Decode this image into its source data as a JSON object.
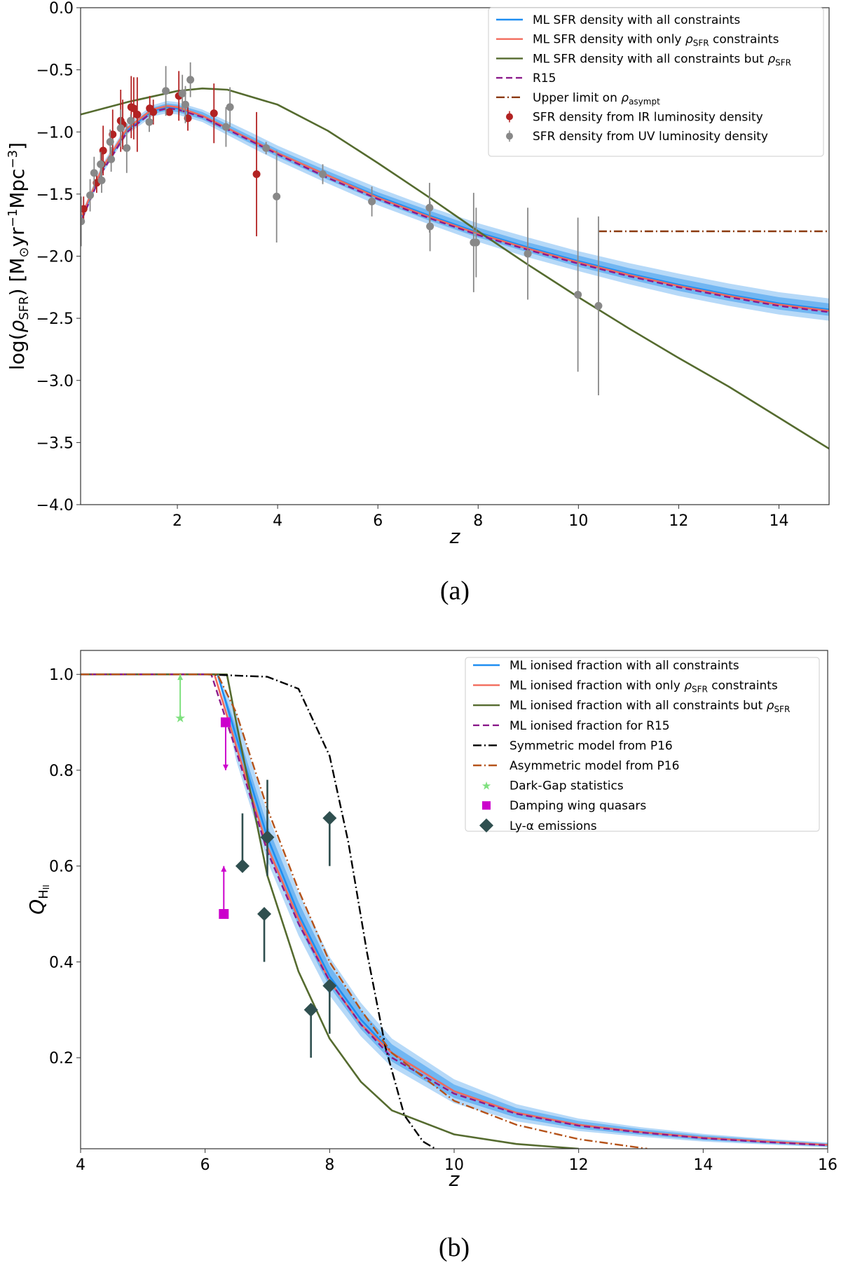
{
  "chart_data": [
    {
      "id": "a",
      "type": "line",
      "caption": "(a)",
      "xlabel": "z",
      "ylabel": "log(ρ_SFR) [M⊙yr⁻¹Mpc⁻³]",
      "ylabel_parts": {
        "pre": "log(",
        "rho": "ρ",
        "sub": "SFR",
        "mid": ") [M",
        "sun": "⊙",
        "yr": "yr",
        "e1": "−1",
        "mpc": "Mpc",
        "e2": "−3",
        "end": "]"
      },
      "xlim": [
        0.07,
        15
      ],
      "ylim": [
        -4.0,
        0.0
      ],
      "xticks": [
        2,
        4,
        6,
        8,
        10,
        12,
        14
      ],
      "xtick_labels": [
        "2",
        "4",
        "6",
        "8",
        "10",
        "12",
        "14"
      ],
      "yticks": [
        0.0,
        -0.5,
        -1.0,
        -1.5,
        -2.0,
        -2.5,
        -3.0,
        -3.5,
        -4.0
      ],
      "ytick_labels": [
        "0.0",
        "−0.5",
        "−1.0",
        "−1.5",
        "−2.0",
        "−2.5",
        "−3.0",
        "−3.5",
        "−4.0"
      ],
      "legend_position": "top-right",
      "legend": [
        {
          "label": "ML SFR density with all constraints",
          "style": "line",
          "color": "#1f8ef1"
        },
        {
          "label": "ML SFR density with only ρSFR constraints",
          "style": "line",
          "color": "#f26b5b"
        },
        {
          "label": "ML SFR density with all constraints but ρSFR",
          "style": "line",
          "color": "#556b2f"
        },
        {
          "label": "R15",
          "style": "dash",
          "color": "#8b1a8b"
        },
        {
          "label": "Upper limit on ρasympt",
          "style": "dashdot",
          "color": "#8b3a0f"
        },
        {
          "label": "SFR density from IR luminosity density",
          "style": "point",
          "color": "#b22222"
        },
        {
          "label": "SFR density from UV luminosity density",
          "style": "point",
          "color": "#888888"
        }
      ],
      "band": {
        "x": [
          0.1,
          0.5,
          1,
          1.5,
          1.8,
          2,
          2.5,
          3,
          3.5,
          4,
          5,
          6,
          7,
          8,
          9,
          10,
          11,
          12,
          13,
          14,
          15
        ],
        "inner": [
          0.02,
          0.02,
          0.02,
          0.025,
          0.03,
          0.03,
          0.03,
          0.03,
          0.03,
          0.03,
          0.035,
          0.035,
          0.04,
          0.04,
          0.04,
          0.045,
          0.045,
          0.05,
          0.05,
          0.05,
          0.05
        ],
        "outer": [
          0.04,
          0.04,
          0.04,
          0.045,
          0.05,
          0.05,
          0.05,
          0.055,
          0.06,
          0.06,
          0.065,
          0.07,
          0.07,
          0.075,
          0.08,
          0.08,
          0.085,
          0.09,
          0.09,
          0.09,
          0.09
        ]
      },
      "series": [
        {
          "name": "ML SFR density with all constraints",
          "x": [
            0.1,
            0.5,
            1,
            1.5,
            1.8,
            2,
            2.5,
            3,
            3.5,
            4,
            5,
            6,
            7,
            8,
            9,
            10,
            11,
            12,
            13,
            14,
            15
          ],
          "y": [
            -1.68,
            -1.3,
            -0.98,
            -0.83,
            -0.8,
            -0.81,
            -0.87,
            -0.97,
            -1.07,
            -1.17,
            -1.35,
            -1.52,
            -1.67,
            -1.81,
            -1.93,
            -2.04,
            -2.14,
            -2.23,
            -2.31,
            -2.38,
            -2.43
          ]
        },
        {
          "name": "ML SFR density with only ρSFR constraints",
          "x": [
            0.1,
            0.5,
            1,
            1.5,
            1.8,
            2,
            2.5,
            3,
            3.5,
            4,
            5,
            6,
            7,
            8,
            9,
            10,
            11,
            12,
            13,
            14,
            15
          ],
          "y": [
            -1.67,
            -1.29,
            -0.97,
            -0.82,
            -0.79,
            -0.8,
            -0.87,
            -0.97,
            -1.07,
            -1.17,
            -1.35,
            -1.53,
            -1.68,
            -1.82,
            -1.94,
            -2.05,
            -2.15,
            -2.24,
            -2.32,
            -2.39,
            -2.44
          ]
        },
        {
          "name": "ML SFR density with all constraints but ρSFR",
          "x": [
            0.07,
            1,
            2,
            2.5,
            3,
            4,
            5,
            6,
            7,
            8,
            9,
            10,
            11,
            12,
            13,
            14,
            15
          ],
          "y": [
            -0.86,
            -0.76,
            -0.67,
            -0.65,
            -0.66,
            -0.78,
            -0.99,
            -1.25,
            -1.52,
            -1.8,
            -2.07,
            -2.33,
            -2.58,
            -2.82,
            -3.05,
            -3.3,
            -3.55
          ]
        },
        {
          "name": "R15",
          "x": [
            0.1,
            0.5,
            1,
            1.5,
            1.8,
            2,
            2.5,
            3,
            3.5,
            4,
            5,
            6,
            7,
            8,
            9,
            10,
            11,
            12,
            13,
            14,
            15
          ],
          "y": [
            -1.7,
            -1.32,
            -1.0,
            -0.84,
            -0.81,
            -0.82,
            -0.88,
            -0.98,
            -1.08,
            -1.18,
            -1.37,
            -1.54,
            -1.69,
            -1.83,
            -1.95,
            -2.06,
            -2.16,
            -2.25,
            -2.33,
            -2.4,
            -2.45
          ]
        },
        {
          "name": "Upper limit on ρasympt",
          "x": [
            10.4,
            15
          ],
          "y": [
            -1.8,
            -1.8
          ]
        }
      ],
      "points": [
        {
          "name": "SFR density from IR luminosity density",
          "x": [
            0.13,
            0.39,
            0.49,
            0.52,
            0.71,
            0.87,
            0.91,
            1.08,
            1.13,
            1.2,
            1.45,
            1.52,
            1.84,
            2.03,
            2.21,
            2.73,
            3.58
          ],
          "y": [
            -1.62,
            -1.41,
            -1.26,
            -1.15,
            -1.02,
            -0.91,
            -0.94,
            -0.8,
            -0.81,
            -0.86,
            -0.81,
            -0.84,
            -0.84,
            -0.71,
            -0.89,
            -0.85,
            -1.34
          ],
          "err": [
            0.1,
            0.08,
            0.1,
            0.2,
            0.2,
            0.25,
            0.2,
            0.25,
            0.25,
            0.3,
            0.1,
            0.1,
            0.03,
            0.2,
            0.1,
            0.24,
            0.5
          ]
        },
        {
          "name": "SFR density from UV luminosity density",
          "x": [
            0.08,
            0.26,
            0.34,
            0.47,
            0.49,
            0.66,
            0.68,
            0.87,
            0.99,
            1.07,
            1.44,
            1.77,
            2.1,
            2.26,
            2.16,
            2.97,
            3.05,
            3.77,
            3.98,
            4.9,
            5.88,
            7.03,
            7.04,
            7.91,
            7.96,
            8.99,
            9.99,
            10.4
          ],
          "y": [
            -1.72,
            -1.51,
            -1.33,
            -1.26,
            -1.39,
            -1.08,
            -1.22,
            -0.97,
            -1.13,
            -0.91,
            -0.92,
            -0.67,
            -0.69,
            -0.58,
            -0.78,
            -0.96,
            -0.8,
            -1.13,
            -1.52,
            -1.34,
            -1.56,
            -1.61,
            -1.76,
            -1.89,
            -1.89,
            -1.98,
            -2.31,
            -2.4
          ],
          "err": [
            0.2,
            0.13,
            0.13,
            0.1,
            0.1,
            0.1,
            0.1,
            0.15,
            0.2,
            0.05,
            0.08,
            0.2,
            0.15,
            0.14,
            0.15,
            0.16,
            0.16,
            0.05,
            0.37,
            0.08,
            0.12,
            0.2,
            0.2,
            0.4,
            0.28,
            0.37,
            0.62,
            0.72
          ]
        }
      ]
    },
    {
      "id": "b",
      "type": "line",
      "caption": "(b)",
      "xlabel": "z",
      "ylabel": "Q_HII",
      "ylabel_parts": {
        "q": "Q",
        "sub": "H",
        "subsub": "II"
      },
      "xlim": [
        4,
        16
      ],
      "ylim": [
        0.01,
        1.05
      ],
      "xticks": [
        4,
        6,
        8,
        10,
        12,
        14,
        16
      ],
      "xtick_labels": [
        "4",
        "6",
        "8",
        "10",
        "12",
        "14",
        "16"
      ],
      "yticks": [
        0.2,
        0.4,
        0.6,
        0.8,
        1.0
      ],
      "ytick_labels": [
        "0.2",
        "0.4",
        "0.6",
        "0.8",
        "1.0"
      ],
      "legend_position": "top-right",
      "legend": [
        {
          "label": "ML ionised fraction with all constraints",
          "style": "line",
          "color": "#1f8ef1"
        },
        {
          "label": "ML ionised fraction with only ρSFR constraints",
          "style": "line",
          "color": "#f26b5b"
        },
        {
          "label": "ML ionised fraction with all constraints but ρSFR",
          "style": "line",
          "color": "#556b2f"
        },
        {
          "label": "ML ionised fraction for R15",
          "style": "dash",
          "color": "#8b1a8b"
        },
        {
          "label": "Symmetric model from P16",
          "style": "dashdot",
          "color": "#000000"
        },
        {
          "label": "Asymmetric model from P16",
          "style": "dashdot",
          "color": "#b5531a"
        },
        {
          "label": "Dark-Gap statistics",
          "style": "star",
          "color": "#7ee07e"
        },
        {
          "label": "Damping wing quasars",
          "style": "square",
          "color": "#cc00cc"
        },
        {
          "label": "Ly-α emissions",
          "style": "diamond",
          "color": "#2f4f4f"
        }
      ],
      "band": {
        "x": [
          4,
          6.2,
          6.5,
          7,
          7.5,
          8,
          8.5,
          9,
          10,
          11,
          12,
          13,
          14,
          15,
          16
        ],
        "inner": [
          0,
          0,
          0.02,
          0.025,
          0.025,
          0.022,
          0.02,
          0.018,
          0.014,
          0.01,
          0.008,
          0.006,
          0.005,
          0.004,
          0.003
        ],
        "outer": [
          0,
          0,
          0.05,
          0.05,
          0.045,
          0.04,
          0.035,
          0.03,
          0.025,
          0.018,
          0.013,
          0.01,
          0.008,
          0.006,
          0.005
        ]
      },
      "series": [
        {
          "name": "ML ionised fraction with all constraints",
          "x": [
            4,
            6.2,
            6.5,
            7,
            7.5,
            8,
            8.5,
            9,
            10,
            11,
            12,
            13,
            14,
            15,
            16
          ],
          "y": [
            1,
            1,
            0.87,
            0.66,
            0.5,
            0.37,
            0.28,
            0.21,
            0.13,
            0.085,
            0.06,
            0.045,
            0.033,
            0.025,
            0.018
          ]
        },
        {
          "name": "ML ionised fraction with only ρSFR constraints",
          "x": [
            4,
            6.15,
            6.5,
            7,
            7.5,
            8,
            8.5,
            9,
            10,
            11,
            12,
            13,
            14,
            15,
            16
          ],
          "y": [
            1,
            1,
            0.85,
            0.64,
            0.49,
            0.36,
            0.27,
            0.21,
            0.13,
            0.085,
            0.06,
            0.045,
            0.033,
            0.025,
            0.018
          ]
        },
        {
          "name": "ML ionised fraction with all constraints but ρSFR",
          "x": [
            4,
            6.35,
            6.5,
            7,
            7.5,
            8,
            8.5,
            9,
            10,
            11,
            12
          ],
          "y": [
            1,
            1,
            0.9,
            0.58,
            0.38,
            0.24,
            0.15,
            0.09,
            0.04,
            0.02,
            0.01
          ]
        },
        {
          "name": "ML ionised fraction for R15",
          "x": [
            4,
            6.1,
            6.5,
            7,
            7.5,
            8,
            8.5,
            9,
            10,
            11,
            12,
            13,
            14,
            15,
            16
          ],
          "y": [
            1,
            1,
            0.84,
            0.63,
            0.48,
            0.36,
            0.27,
            0.2,
            0.125,
            0.083,
            0.058,
            0.044,
            0.032,
            0.024,
            0.017
          ]
        },
        {
          "name": "Symmetric model from P16",
          "x": [
            4,
            6,
            7,
            7.5,
            8,
            8.3,
            8.6,
            8.9,
            9.2,
            9.5,
            9.7
          ],
          "y": [
            1,
            1,
            0.995,
            0.97,
            0.83,
            0.65,
            0.42,
            0.22,
            0.08,
            0.025,
            0.01
          ]
        },
        {
          "name": "Asymmetric model from P16",
          "x": [
            4,
            6.2,
            6.5,
            7,
            7.5,
            8,
            8.5,
            9,
            10,
            11,
            12,
            13.1
          ],
          "y": [
            1,
            1,
            0.92,
            0.72,
            0.55,
            0.4,
            0.3,
            0.21,
            0.11,
            0.06,
            0.03,
            0.01
          ]
        }
      ],
      "points": [
        {
          "name": "Dark-Gap statistics",
          "marker": "star",
          "x": [
            5.6
          ],
          "y": [
            0.91
          ],
          "limit": [
            "lower"
          ],
          "to": [
            1.0
          ]
        },
        {
          "name": "Damping wing quasars",
          "marker": "square",
          "x": [
            6.33,
            6.3
          ],
          "y": [
            0.9,
            0.5
          ],
          "limit": [
            "upper",
            "lower"
          ],
          "to": [
            0.8,
            0.6
          ]
        },
        {
          "name": "Ly-α emissions",
          "marker": "diamond",
          "x": [
            6.6,
            7.0,
            6.95,
            7.7,
            8.0,
            8.0
          ],
          "y": [
            0.6,
            0.66,
            0.5,
            0.3,
            0.7,
            0.35
          ],
          "lo": [
            0.6,
            0.58,
            0.4,
            0.2,
            0.6,
            0.25
          ],
          "hi": [
            0.71,
            0.78,
            0.5,
            0.3,
            0.7,
            0.35
          ]
        }
      ]
    }
  ]
}
